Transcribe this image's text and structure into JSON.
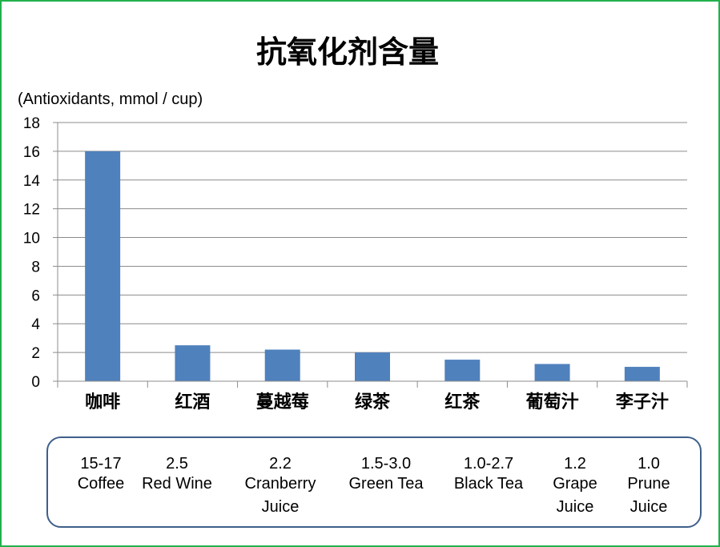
{
  "chart_data": {
    "type": "bar",
    "title": "抗氧化剂含量",
    "ylabel": "(Antioxidants, mmol / cup)",
    "xlabel": "",
    "ylim": [
      0,
      18
    ],
    "yticks": [
      0,
      2,
      4,
      6,
      8,
      10,
      12,
      14,
      16,
      18
    ],
    "grid": true,
    "categories": [
      "咖啡",
      "红酒",
      "蔓越莓",
      "绿茶",
      "红茶",
      "葡萄汁",
      "李子汁"
    ],
    "values": [
      16,
      2.5,
      2.2,
      2.0,
      1.5,
      1.2,
      1.0
    ],
    "bar_color": "#4f81bd"
  },
  "notes": [
    {
      "range": "15-17",
      "lines": [
        "Coffee"
      ]
    },
    {
      "range": "2.5",
      "lines": [
        "Red Wine"
      ]
    },
    {
      "range": "2.2",
      "lines": [
        "Cranberry",
        "Juice"
      ]
    },
    {
      "range": "1.5-3.0",
      "lines": [
        "Green Tea"
      ]
    },
    {
      "range": "1.0-2.7",
      "lines": [
        "Black Tea"
      ]
    },
    {
      "range": "1.2",
      "lines": [
        "Grape",
        "Juice"
      ]
    },
    {
      "range": "1.0",
      "lines": [
        "Prune",
        "Juice"
      ]
    }
  ]
}
